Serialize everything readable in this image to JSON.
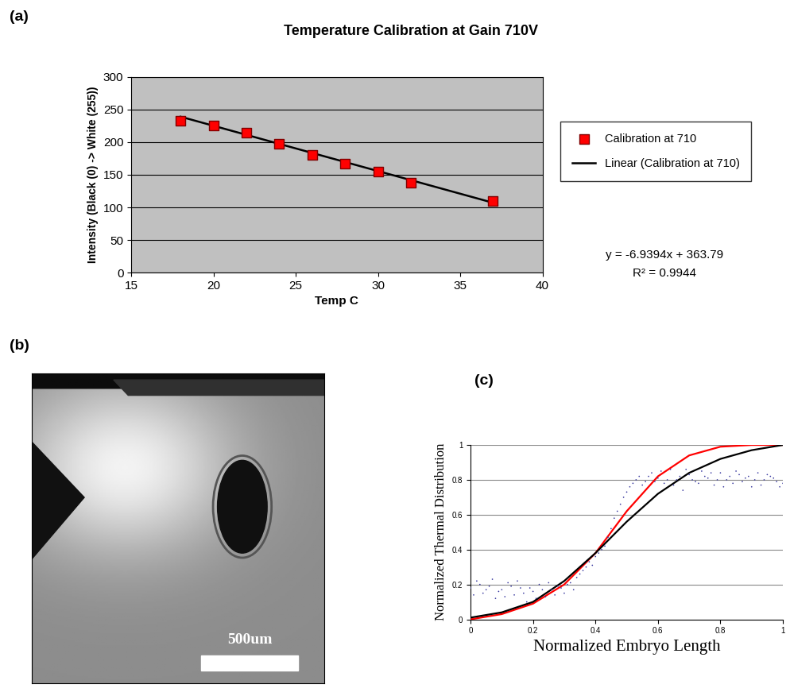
{
  "chart_data": [
    {
      "panel": "(a)",
      "type": "scatter",
      "title": "Temperature Calibration at Gain 710V",
      "x_label": "Temp C",
      "y_label": "Intensity (Black (0) -> White (255))",
      "xlim": [
        15,
        40
      ],
      "xticks": [
        15,
        20,
        25,
        30,
        35,
        40
      ],
      "ylim": [
        0,
        300
      ],
      "yticks": [
        0,
        50,
        100,
        150,
        200,
        250,
        300
      ],
      "grid": true,
      "legend": "right",
      "series": [
        {
          "name": "Calibration at 710",
          "type": "scatter",
          "color": "#ff0000",
          "marker": "square",
          "x": [
            18,
            20,
            22,
            24,
            26,
            28,
            30,
            32,
            37
          ],
          "values": [
            233,
            225,
            214,
            197,
            180,
            167,
            155,
            138,
            110
          ]
        },
        {
          "name": "Linear (Calibration at 710)",
          "type": "line",
          "color": "#000000",
          "line_style": "solid",
          "x": [
            18,
            37
          ],
          "values": [
            238.88,
            107.03
          ]
        }
      ],
      "annotations": [
        "y = -6.9394x + 363.79",
        "R² = 0.9944"
      ]
    },
    {
      "panel": "(b)",
      "type": "image",
      "scale_bar_label": "500um"
    },
    {
      "panel": "(c)",
      "type": "scatter",
      "x_label": "Normalized Embryo Length",
      "y_label": "Normalized Thermal Distribution",
      "xlim": [
        0,
        1
      ],
      "xticks": [
        0,
        0.2,
        0.4,
        0.6,
        0.8,
        1
      ],
      "ylim": [
        0,
        1
      ],
      "yticks": [
        0,
        0.2,
        0.4,
        0.6,
        0.8,
        1
      ],
      "grid": true,
      "series": [
        {
          "type": "scatter",
          "color": "#3a3aa0",
          "marker": "dot",
          "x": [
            0.0,
            0.02,
            0.04,
            0.06,
            0.08,
            0.1,
            0.12,
            0.14,
            0.16,
            0.18,
            0.2,
            0.22,
            0.24,
            0.26,
            0.28,
            0.3,
            0.32,
            0.34,
            0.36,
            0.38,
            0.4,
            0.42,
            0.44,
            0.46,
            0.48,
            0.5,
            0.52,
            0.54,
            0.56,
            0.58,
            0.6,
            0.62,
            0.64,
            0.66,
            0.68,
            0.7,
            0.72,
            0.74,
            0.76,
            0.78,
            0.8,
            0.82,
            0.84,
            0.86,
            0.88,
            0.9,
            0.92,
            0.94,
            0.96,
            0.98,
            1.0,
            0.01,
            0.03,
            0.05,
            0.07,
            0.09,
            0.11,
            0.13,
            0.15,
            0.17,
            0.19,
            0.21,
            0.23,
            0.25,
            0.27,
            0.29,
            0.31,
            0.33,
            0.35,
            0.37,
            0.39,
            0.41,
            0.43,
            0.45,
            0.47,
            0.49,
            0.51,
            0.53,
            0.55,
            0.57,
            0.59,
            0.61,
            0.63,
            0.65,
            0.67,
            0.69,
            0.71,
            0.73,
            0.75,
            0.77,
            0.79,
            0.81,
            0.83,
            0.85,
            0.87,
            0.89,
            0.91,
            0.93,
            0.95,
            0.97,
            0.99
          ],
          "values": [
            0.18,
            0.22,
            0.15,
            0.19,
            0.12,
            0.17,
            0.21,
            0.14,
            0.18,
            0.1,
            0.16,
            0.2,
            0.13,
            0.17,
            0.19,
            0.15,
            0.21,
            0.24,
            0.28,
            0.33,
            0.36,
            0.4,
            0.47,
            0.58,
            0.66,
            0.73,
            0.78,
            0.82,
            0.79,
            0.84,
            0.81,
            0.78,
            0.86,
            0.8,
            0.74,
            0.83,
            0.79,
            0.85,
            0.81,
            0.77,
            0.84,
            0.8,
            0.78,
            0.83,
            0.81,
            0.76,
            0.84,
            0.8,
            0.82,
            0.79,
            0.78,
            0.14,
            0.2,
            0.17,
            0.23,
            0.16,
            0.13,
            0.19,
            0.22,
            0.15,
            0.18,
            0.12,
            0.17,
            0.21,
            0.14,
            0.18,
            0.2,
            0.17,
            0.26,
            0.3,
            0.31,
            0.38,
            0.42,
            0.52,
            0.62,
            0.7,
            0.76,
            0.8,
            0.77,
            0.82,
            0.79,
            0.85,
            0.8,
            0.77,
            0.82,
            0.86,
            0.8,
            0.78,
            0.82,
            0.84,
            0.8,
            0.76,
            0.82,
            0.85,
            0.79,
            0.82,
            0.8,
            0.77,
            0.83,
            0.81,
            0.76
          ]
        },
        {
          "type": "line",
          "color": "#ff0000",
          "line_style": "solid",
          "x": [
            0,
            0.1,
            0.2,
            0.3,
            0.4,
            0.5,
            0.6,
            0.7,
            0.8,
            0.9,
            1
          ],
          "values": [
            0.0,
            0.03,
            0.09,
            0.2,
            0.38,
            0.62,
            0.82,
            0.94,
            0.99,
            1.0,
            1.0
          ]
        },
        {
          "type": "line",
          "color": "#000000",
          "line_style": "solid",
          "x": [
            0,
            0.1,
            0.2,
            0.3,
            0.4,
            0.5,
            0.6,
            0.7,
            0.8,
            0.9,
            1
          ],
          "values": [
            0.01,
            0.04,
            0.1,
            0.22,
            0.38,
            0.56,
            0.72,
            0.84,
            0.92,
            0.97,
            1.0
          ]
        }
      ]
    }
  ]
}
